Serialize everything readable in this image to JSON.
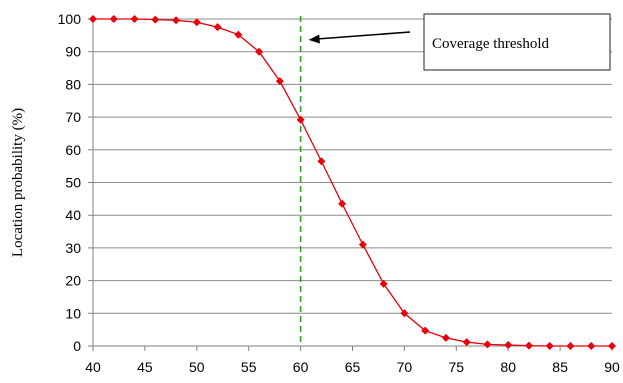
{
  "chart_data": {
    "type": "line",
    "title": "",
    "xlabel": "",
    "ylabel": "Location probability (%)",
    "xlim": [
      40,
      90
    ],
    "ylim": [
      0,
      100
    ],
    "x_ticks": [
      40,
      45,
      50,
      55,
      60,
      65,
      70,
      75,
      80,
      85,
      90
    ],
    "y_ticks": [
      0,
      10,
      20,
      30,
      40,
      50,
      60,
      70,
      80,
      90,
      100
    ],
    "grid": "horizontal",
    "legend": "none",
    "series": [
      {
        "color": "#e8000b",
        "marker": "diamond",
        "x": [
          40,
          42,
          44,
          46,
          48,
          50,
          52,
          54,
          56,
          58,
          60,
          62,
          64,
          66,
          68,
          70,
          72,
          74,
          76,
          78,
          80,
          82,
          84,
          86,
          88,
          90
        ],
        "y": [
          100,
          100,
          100,
          99.8,
          99.6,
          99,
          97.5,
          95.2,
          90,
          81,
          69.2,
          56.5,
          43.5,
          31,
          19,
          10,
          4.7,
          2.5,
          1.2,
          0.5,
          0.3,
          0.1,
          0,
          0,
          0,
          0
        ]
      }
    ],
    "threshold": {
      "x": 60,
      "color": "#2ca02c",
      "style": "dashed"
    },
    "annotations": [
      {
        "text": "Coverage threshold",
        "points_to_x": 60,
        "points_to_y": 93
      }
    ]
  }
}
